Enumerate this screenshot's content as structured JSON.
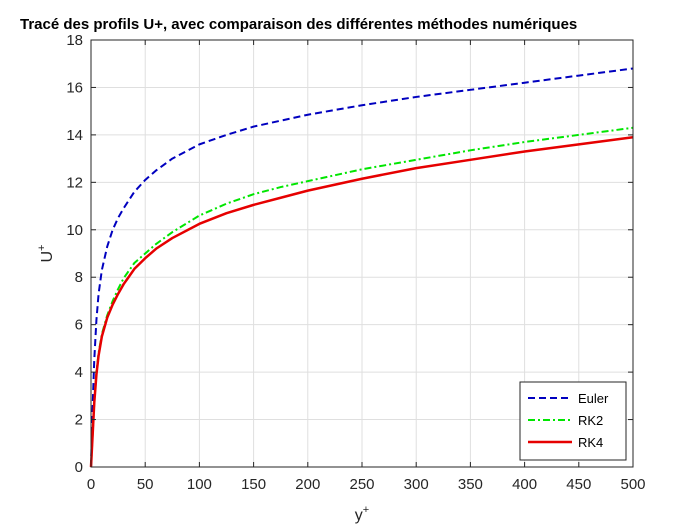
{
  "chart_data": {
    "type": "line",
    "title": "Tracé des profils U+, avec comparaison des différentes méthodes numériques",
    "xlabel": "y",
    "xlabel_sup": "+",
    "ylabel": "U",
    "ylabel_sup": "+",
    "xlim": [
      0,
      500
    ],
    "ylim": [
      0,
      18
    ],
    "xticks": [
      0,
      50,
      100,
      150,
      200,
      250,
      300,
      350,
      400,
      450,
      500
    ],
    "yticks": [
      0,
      2,
      4,
      6,
      8,
      10,
      12,
      14,
      16,
      18
    ],
    "grid": true,
    "legend_position": "bottom-right",
    "x": [
      0,
      1,
      2,
      3,
      5,
      7,
      10,
      15,
      20,
      25,
      30,
      40,
      50,
      60,
      75,
      100,
      125,
      150,
      175,
      200,
      250,
      300,
      350,
      400,
      450,
      500
    ],
    "series": [
      {
        "name": "Euler",
        "color": "#0000bf",
        "style": "dashed",
        "values": [
          0,
          1.8,
          3.2,
          4.5,
          6.2,
          7.3,
          8.3,
          9.3,
          10.0,
          10.5,
          10.9,
          11.6,
          12.1,
          12.5,
          13.0,
          13.6,
          14.0,
          14.35,
          14.6,
          14.85,
          15.25,
          15.6,
          15.9,
          16.2,
          16.5,
          16.8
        ]
      },
      {
        "name": "RK2",
        "color": "#00e600",
        "style": "dashdot",
        "values": [
          0,
          0.9,
          1.8,
          2.7,
          4.0,
          4.8,
          5.6,
          6.4,
          7.0,
          7.5,
          7.95,
          8.6,
          9.0,
          9.4,
          9.9,
          10.6,
          11.1,
          11.5,
          11.8,
          12.05,
          12.55,
          12.95,
          13.35,
          13.7,
          14.0,
          14.3
        ]
      },
      {
        "name": "RK4",
        "color": "#e60000",
        "style": "solid",
        "values": [
          0,
          0.9,
          1.8,
          2.7,
          3.9,
          4.7,
          5.5,
          6.3,
          6.85,
          7.3,
          7.7,
          8.35,
          8.8,
          9.2,
          9.65,
          10.25,
          10.7,
          11.05,
          11.35,
          11.65,
          12.15,
          12.6,
          12.95,
          13.3,
          13.6,
          13.9
        ]
      }
    ]
  }
}
